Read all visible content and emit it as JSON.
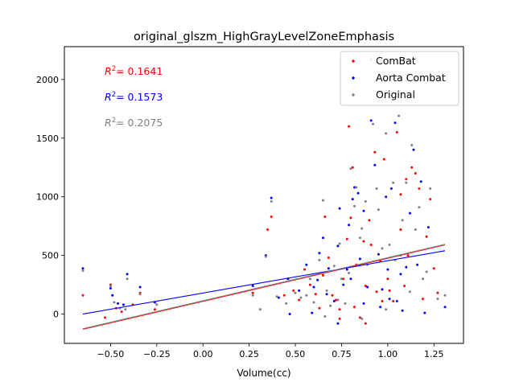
{
  "chart_data": {
    "type": "scatter",
    "title": "original_glszm_HighGrayLevelZoneEmphasis",
    "xlabel": "Volume(cc)",
    "ylabel": "",
    "xlim": [
      -0.75,
      1.41
    ],
    "ylim": [
      -250,
      2280
    ],
    "xticks": [
      -0.5,
      -0.25,
      0.0,
      0.25,
      0.5,
      0.75,
      1.0,
      1.25
    ],
    "xtick_labels": [
      "−0.50",
      "−0.25",
      "0.00",
      "0.25",
      "0.50",
      "0.75",
      "1.00",
      "1.25"
    ],
    "yticks": [
      0,
      500,
      1000,
      1500,
      2000
    ],
    "ytick_labels": [
      "0",
      "500",
      "1000",
      "1500",
      "2000"
    ],
    "grid": false,
    "legend_position": "top-right",
    "annotations": [
      {
        "label": "R",
        "value": "= 0.1641",
        "color": "#ff0000"
      },
      {
        "label": "R",
        "value": "= 0.1573",
        "color": "#0000ff"
      },
      {
        "label": "R",
        "value": "= 0.2075",
        "color": "#808080"
      }
    ],
    "series": [
      {
        "name": "ComBat",
        "color": "#ff0000",
        "fit": {
          "x": [
            -0.65,
            1.31
          ],
          "y": [
            -130,
            590
          ]
        },
        "points": [
          [
            -0.65,
            160
          ],
          [
            -0.5,
            250
          ],
          [
            -0.53,
            -30
          ],
          [
            -0.47,
            50
          ],
          [
            -0.44,
            20
          ],
          [
            -0.38,
            80
          ],
          [
            -0.34,
            180
          ],
          [
            -0.26,
            40
          ],
          [
            0.27,
            180
          ],
          [
            0.35,
            720
          ],
          [
            0.37,
            830
          ],
          [
            0.44,
            160
          ],
          [
            0.49,
            200
          ],
          [
            0.52,
            120
          ],
          [
            0.55,
            380
          ],
          [
            0.58,
            250
          ],
          [
            0.61,
            170
          ],
          [
            0.63,
            50
          ],
          [
            0.66,
            830
          ],
          [
            0.68,
            480
          ],
          [
            0.7,
            160
          ],
          [
            0.72,
            120
          ],
          [
            0.74,
            40
          ],
          [
            0.76,
            300
          ],
          [
            0.78,
            640
          ],
          [
            0.79,
            1600
          ],
          [
            0.8,
            820
          ],
          [
            0.82,
            60
          ],
          [
            0.83,
            420
          ],
          [
            0.85,
            -30
          ],
          [
            0.87,
            620
          ],
          [
            0.88,
            240
          ],
          [
            0.9,
            800
          ],
          [
            0.91,
            590
          ],
          [
            0.93,
            1380
          ],
          [
            0.94,
            190
          ],
          [
            0.96,
            450
          ],
          [
            0.98,
            1320
          ],
          [
            1.0,
            300
          ],
          [
            1.01,
            200
          ],
          [
            1.03,
            110
          ],
          [
            1.05,
            1550
          ],
          [
            1.07,
            720
          ],
          [
            1.09,
            240
          ],
          [
            1.1,
            1150
          ],
          [
            1.13,
            1250
          ],
          [
            1.15,
            1200
          ],
          [
            1.17,
            1070
          ],
          [
            1.19,
            130
          ],
          [
            1.21,
            660
          ],
          [
            1.23,
            980
          ],
          [
            1.25,
            390
          ],
          [
            1.27,
            180
          ],
          [
            0.74,
            -40
          ],
          [
            0.88,
            -80
          ],
          [
            0.97,
            110
          ],
          [
            1.11,
            500
          ],
          [
            0.65,
            330
          ],
          [
            0.81,
            1250
          ],
          [
            1.07,
            1020
          ]
        ]
      },
      {
        "name": "Aorta Combat",
        "color": "#0000ff",
        "fit": {
          "x": [
            -0.65,
            1.31
          ],
          "y": [
            0,
            540
          ]
        },
        "points": [
          [
            -0.65,
            390
          ],
          [
            -0.5,
            220
          ],
          [
            -0.49,
            160
          ],
          [
            -0.46,
            90
          ],
          [
            -0.43,
            80
          ],
          [
            -0.41,
            340
          ],
          [
            -0.34,
            230
          ],
          [
            -0.26,
            100
          ],
          [
            0.27,
            240
          ],
          [
            0.34,
            500
          ],
          [
            0.37,
            990
          ],
          [
            0.41,
            140
          ],
          [
            0.46,
            300
          ],
          [
            0.47,
            0
          ],
          [
            0.52,
            200
          ],
          [
            0.56,
            420
          ],
          [
            0.6,
            230
          ],
          [
            0.62,
            290
          ],
          [
            0.65,
            650
          ],
          [
            0.67,
            170
          ],
          [
            0.68,
            390
          ],
          [
            0.71,
            110
          ],
          [
            0.73,
            580
          ],
          [
            0.74,
            900
          ],
          [
            0.76,
            250
          ],
          [
            0.78,
            380
          ],
          [
            0.8,
            300
          ],
          [
            0.81,
            980
          ],
          [
            0.82,
            1080
          ],
          [
            0.84,
            1030
          ],
          [
            0.85,
            470
          ],
          [
            0.87,
            880
          ],
          [
            0.89,
            230
          ],
          [
            0.91,
            1650
          ],
          [
            0.93,
            1270
          ],
          [
            0.95,
            510
          ],
          [
            0.97,
            210
          ],
          [
            0.99,
            1000
          ],
          [
            1.0,
            380
          ],
          [
            1.02,
            1070
          ],
          [
            1.04,
            1630
          ],
          [
            1.05,
            110
          ],
          [
            1.07,
            340
          ],
          [
            1.08,
            30
          ],
          [
            1.1,
            400
          ],
          [
            1.12,
            860
          ],
          [
            1.14,
            1400
          ],
          [
            1.16,
            420
          ],
          [
            1.18,
            1130
          ],
          [
            1.2,
            10
          ],
          [
            1.22,
            740
          ],
          [
            1.31,
            60
          ],
          [
            0.59,
            10
          ],
          [
            0.73,
            -80
          ],
          [
            0.87,
            90
          ],
          [
            0.96,
            60
          ],
          [
            1.01,
            130
          ],
          [
            0.63,
            520
          ],
          [
            0.79,
            760
          ]
        ]
      },
      {
        "name": "Original",
        "color": "#808080",
        "fit": {
          "x": [
            -0.65,
            1.31
          ],
          "y": [
            -125,
            595
          ]
        },
        "points": [
          [
            -0.65,
            370
          ],
          [
            -0.5,
            240
          ],
          [
            -0.48,
            100
          ],
          [
            -0.45,
            50
          ],
          [
            -0.42,
            40
          ],
          [
            -0.41,
            300
          ],
          [
            -0.34,
            170
          ],
          [
            -0.25,
            80
          ],
          [
            0.27,
            160
          ],
          [
            0.31,
            40
          ],
          [
            0.34,
            490
          ],
          [
            0.37,
            960
          ],
          [
            0.4,
            150
          ],
          [
            0.45,
            90
          ],
          [
            0.5,
            180
          ],
          [
            0.53,
            140
          ],
          [
            0.56,
            160
          ],
          [
            0.58,
            300
          ],
          [
            0.6,
            100
          ],
          [
            0.63,
            460
          ],
          [
            0.65,
            970
          ],
          [
            0.67,
            200
          ],
          [
            0.69,
            70
          ],
          [
            0.71,
            410
          ],
          [
            0.73,
            120
          ],
          [
            0.75,
            300
          ],
          [
            0.77,
            90
          ],
          [
            0.79,
            350
          ],
          [
            0.8,
            1240
          ],
          [
            0.82,
            920
          ],
          [
            0.83,
            1080
          ],
          [
            0.85,
            650
          ],
          [
            0.86,
            730
          ],
          [
            0.88,
            960
          ],
          [
            0.89,
            420
          ],
          [
            0.91,
            2170
          ],
          [
            0.92,
            1620
          ],
          [
            0.94,
            1070
          ],
          [
            0.95,
            890
          ],
          [
            0.97,
            560
          ],
          [
            0.99,
            1540
          ],
          [
            1.01,
            590
          ],
          [
            1.03,
            1120
          ],
          [
            1.04,
            460
          ],
          [
            1.06,
            1690
          ],
          [
            1.07,
            500
          ],
          [
            1.08,
            800
          ],
          [
            1.1,
            1120
          ],
          [
            1.13,
            1440
          ],
          [
            1.15,
            720
          ],
          [
            1.17,
            910
          ],
          [
            1.19,
            300
          ],
          [
            1.21,
            360
          ],
          [
            1.23,
            1070
          ],
          [
            1.27,
            130
          ],
          [
            1.31,
            160
          ],
          [
            0.66,
            -20
          ],
          [
            0.86,
            -40
          ],
          [
            0.99,
            40
          ],
          [
            1.12,
            190
          ],
          [
            0.74,
            600
          ]
        ]
      }
    ]
  }
}
